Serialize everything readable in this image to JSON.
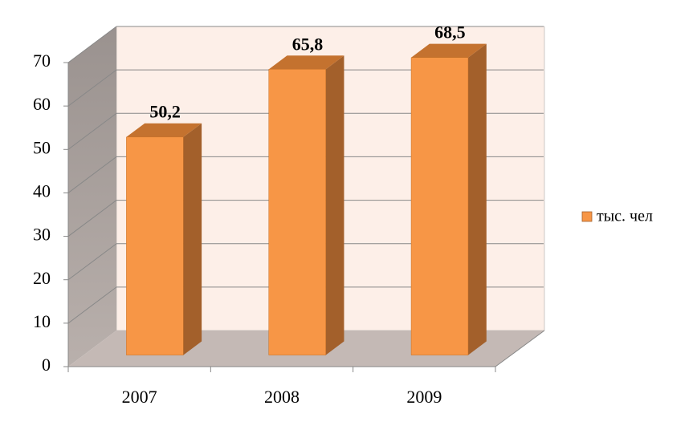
{
  "chart_data": {
    "type": "bar3d",
    "categories": [
      "2007",
      "2008",
      "2009"
    ],
    "series": [
      {
        "name": "тыс. чел",
        "color": "#f79646",
        "values": [
          50.2,
          65.8,
          68.5
        ],
        "value_labels": [
          "50,2",
          "65,8",
          "68,5"
        ]
      }
    ],
    "ylim": [
      0,
      70
    ],
    "yticks": [
      0,
      10,
      20,
      30,
      40,
      50,
      60,
      70
    ],
    "grid": true,
    "legend": "right"
  }
}
